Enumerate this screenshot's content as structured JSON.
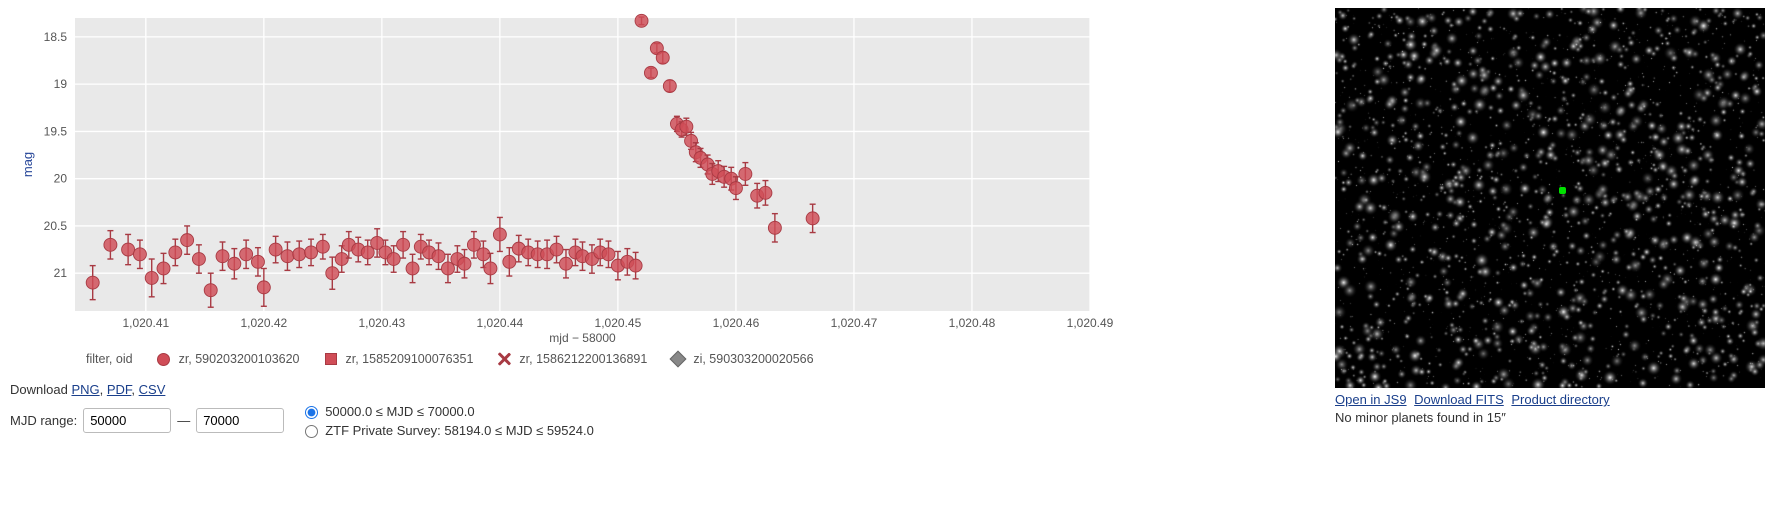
{
  "chart": {
    "type": "scatter",
    "background_color": "#e9e9e9",
    "grid_color": "#ffffff",
    "x_axis": {
      "label": "mjd − 58000",
      "min": 1020.404,
      "max": 1020.49,
      "ticks": [
        1020.41,
        1020.42,
        1020.43,
        1020.44,
        1020.45,
        1020.46,
        1020.47,
        1020.48,
        1020.49
      ],
      "tick_labels": [
        "1,020.41",
        "1,020.42",
        "1,020.43",
        "1,020.44",
        "1,020.45",
        "1,020.46",
        "1,020.47",
        "1,020.48",
        "1,020.49"
      ]
    },
    "y_axis": {
      "label": "mag",
      "min": 18.3,
      "max": 21.4,
      "inverted": true,
      "title_color": "#2b4a9b",
      "ticks": [
        18.5,
        19,
        19.5,
        20,
        20.5,
        21
      ],
      "tick_labels": [
        "18.5",
        "19",
        "19.5",
        "20",
        "20.5",
        "21"
      ]
    },
    "marker": {
      "radius": 6.5,
      "fill": "#d04d57",
      "stroke": "#a83a43",
      "fill_opacity": 0.82
    },
    "errorbar": {
      "color": "#a83a43",
      "cap_width": 6
    },
    "data": [
      {
        "x": 1020.4055,
        "y": 21.1,
        "err": 0.18
      },
      {
        "x": 1020.407,
        "y": 20.7,
        "err": 0.15
      },
      {
        "x": 1020.4085,
        "y": 20.75,
        "err": 0.16
      },
      {
        "x": 1020.4095,
        "y": 20.8,
        "err": 0.15
      },
      {
        "x": 1020.4105,
        "y": 21.05,
        "err": 0.2
      },
      {
        "x": 1020.4115,
        "y": 20.95,
        "err": 0.16
      },
      {
        "x": 1020.4125,
        "y": 20.78,
        "err": 0.14
      },
      {
        "x": 1020.4135,
        "y": 20.65,
        "err": 0.15
      },
      {
        "x": 1020.4145,
        "y": 20.85,
        "err": 0.15
      },
      {
        "x": 1020.4155,
        "y": 21.18,
        "err": 0.18
      },
      {
        "x": 1020.4165,
        "y": 20.82,
        "err": 0.15
      },
      {
        "x": 1020.4175,
        "y": 20.9,
        "err": 0.16
      },
      {
        "x": 1020.4185,
        "y": 20.8,
        "err": 0.15
      },
      {
        "x": 1020.4195,
        "y": 20.88,
        "err": 0.15
      },
      {
        "x": 1020.42,
        "y": 21.15,
        "err": 0.2
      },
      {
        "x": 1020.421,
        "y": 20.75,
        "err": 0.14
      },
      {
        "x": 1020.422,
        "y": 20.82,
        "err": 0.15
      },
      {
        "x": 1020.423,
        "y": 20.8,
        "err": 0.14
      },
      {
        "x": 1020.424,
        "y": 20.78,
        "err": 0.14
      },
      {
        "x": 1020.425,
        "y": 20.72,
        "err": 0.13
      },
      {
        "x": 1020.4258,
        "y": 21.0,
        "err": 0.17
      },
      {
        "x": 1020.4266,
        "y": 20.85,
        "err": 0.14
      },
      {
        "x": 1020.4272,
        "y": 20.7,
        "err": 0.14
      },
      {
        "x": 1020.428,
        "y": 20.75,
        "err": 0.13
      },
      {
        "x": 1020.4288,
        "y": 20.78,
        "err": 0.13
      },
      {
        "x": 1020.4296,
        "y": 20.68,
        "err": 0.15
      },
      {
        "x": 1020.4303,
        "y": 20.78,
        "err": 0.13
      },
      {
        "x": 1020.431,
        "y": 20.85,
        "err": 0.14
      },
      {
        "x": 1020.4318,
        "y": 20.7,
        "err": 0.14
      },
      {
        "x": 1020.4326,
        "y": 20.95,
        "err": 0.15
      },
      {
        "x": 1020.4333,
        "y": 20.72,
        "err": 0.13
      },
      {
        "x": 1020.434,
        "y": 20.78,
        "err": 0.13
      },
      {
        "x": 1020.4348,
        "y": 20.82,
        "err": 0.14
      },
      {
        "x": 1020.4356,
        "y": 20.95,
        "err": 0.15
      },
      {
        "x": 1020.4364,
        "y": 20.85,
        "err": 0.14
      },
      {
        "x": 1020.437,
        "y": 20.9,
        "err": 0.15
      },
      {
        "x": 1020.4378,
        "y": 20.7,
        "err": 0.14
      },
      {
        "x": 1020.4386,
        "y": 20.8,
        "err": 0.14
      },
      {
        "x": 1020.4392,
        "y": 20.95,
        "err": 0.16
      },
      {
        "x": 1020.44,
        "y": 20.59,
        "err": 0.18
      },
      {
        "x": 1020.4408,
        "y": 20.88,
        "err": 0.15
      },
      {
        "x": 1020.4416,
        "y": 20.74,
        "err": 0.14
      },
      {
        "x": 1020.4424,
        "y": 20.78,
        "err": 0.14
      },
      {
        "x": 1020.4432,
        "y": 20.8,
        "err": 0.14
      },
      {
        "x": 1020.444,
        "y": 20.8,
        "err": 0.15
      },
      {
        "x": 1020.4448,
        "y": 20.75,
        "err": 0.14
      },
      {
        "x": 1020.4456,
        "y": 20.9,
        "err": 0.15
      },
      {
        "x": 1020.4464,
        "y": 20.78,
        "err": 0.14
      },
      {
        "x": 1020.447,
        "y": 20.82,
        "err": 0.15
      },
      {
        "x": 1020.4478,
        "y": 20.85,
        "err": 0.15
      },
      {
        "x": 1020.4485,
        "y": 20.78,
        "err": 0.14
      },
      {
        "x": 1020.4492,
        "y": 20.8,
        "err": 0.14
      },
      {
        "x": 1020.45,
        "y": 20.92,
        "err": 0.15
      },
      {
        "x": 1020.4508,
        "y": 20.88,
        "err": 0.14
      },
      {
        "x": 1020.4515,
        "y": 20.92,
        "err": 0.14
      },
      {
        "x": 1020.452,
        "y": 18.33,
        "err": 0.04
      },
      {
        "x": 1020.4528,
        "y": 18.88,
        "err": 0.05
      },
      {
        "x": 1020.4533,
        "y": 18.62,
        "err": 0.05
      },
      {
        "x": 1020.4538,
        "y": 18.72,
        "err": 0.06
      },
      {
        "x": 1020.4544,
        "y": 19.02,
        "err": 0.06
      },
      {
        "x": 1020.455,
        "y": 19.42,
        "err": 0.08
      },
      {
        "x": 1020.4554,
        "y": 19.48,
        "err": 0.08
      },
      {
        "x": 1020.4558,
        "y": 19.45,
        "err": 0.09
      },
      {
        "x": 1020.4562,
        "y": 19.6,
        "err": 0.09
      },
      {
        "x": 1020.4566,
        "y": 19.72,
        "err": 0.1
      },
      {
        "x": 1020.457,
        "y": 19.78,
        "err": 0.1
      },
      {
        "x": 1020.4576,
        "y": 19.85,
        "err": 0.1
      },
      {
        "x": 1020.458,
        "y": 19.95,
        "err": 0.11
      },
      {
        "x": 1020.4585,
        "y": 19.92,
        "err": 0.11
      },
      {
        "x": 1020.459,
        "y": 19.98,
        "err": 0.11
      },
      {
        "x": 1020.4596,
        "y": 20.0,
        "err": 0.12
      },
      {
        "x": 1020.46,
        "y": 20.1,
        "err": 0.12
      },
      {
        "x": 1020.4608,
        "y": 19.95,
        "err": 0.12
      },
      {
        "x": 1020.4618,
        "y": 20.18,
        "err": 0.13
      },
      {
        "x": 1020.4625,
        "y": 20.15,
        "err": 0.13
      },
      {
        "x": 1020.4633,
        "y": 20.52,
        "err": 0.15
      },
      {
        "x": 1020.4665,
        "y": 20.42,
        "err": 0.15
      }
    ]
  },
  "legend": {
    "title": "filter, oid",
    "items": [
      {
        "shape": "circle",
        "label": "zr, 590203200103620"
      },
      {
        "shape": "square",
        "label": "zr, 1585209100076351"
      },
      {
        "shape": "x",
        "label": "zr, 1586212200136891"
      },
      {
        "shape": "diamond",
        "label": "zi, 590303200020566"
      }
    ]
  },
  "controls": {
    "download_label": "Download",
    "download_links": [
      "PNG",
      "PDF",
      "CSV"
    ],
    "mjd_range_label": "MJD range:",
    "mjd_min": "50000",
    "mjd_max": "70000",
    "range_sep": "—",
    "radio_options": [
      {
        "label": "50000.0 ≤ MJD ≤ 70000.0",
        "checked": true
      },
      {
        "label": "ZTF Private Survey: 58194.0 ≤ MJD ≤ 59524.0",
        "checked": false
      }
    ]
  },
  "sky": {
    "star_count": 2600,
    "marker": {
      "left_pct": 52,
      "top_pct": 47,
      "color": "#00e000"
    },
    "links": [
      "Open in JS9",
      "Download FITS",
      "Product directory"
    ],
    "caption": "No minor planets found in 15″"
  }
}
